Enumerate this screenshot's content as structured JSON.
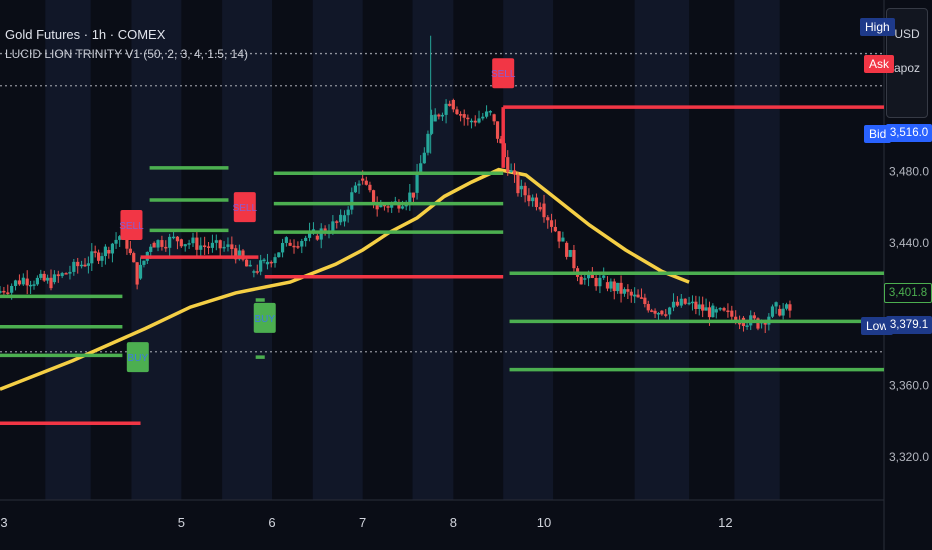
{
  "header": {
    "symbol_title": "Gold Futures · 1h · COMEX",
    "indicator_title": "LUCID LION TRINITY V1 (50, 2, 3, 4, 1.5, 14)"
  },
  "currency_box": {
    "currency": "USD",
    "label": "apoz"
  },
  "price_tags": {
    "high_label": "High",
    "ask_label": "Ask",
    "bid_label": "Bid",
    "bid_value": "3,516.0",
    "last_value": "3,401.8",
    "low_label": "Low",
    "low_value": "3,379.1"
  },
  "colors": {
    "background": "#0a0d16",
    "session_shade": "#111728",
    "up_candle": "#26a69a",
    "down_candle": "#ef5350",
    "ema_line": "#f5cf45",
    "support_line": "#4caf50",
    "resistance_line": "#f23645",
    "sell_marker": "#f23645",
    "buy_marker": "#4caf50",
    "high_tag": "#1e3a8a",
    "bid_tag": "#2962ff",
    "low_tag": "#1e3a8a"
  },
  "chart_data": {
    "type": "candlestick",
    "title": "Gold Futures · 1h · COMEX",
    "ylim": [
      3296,
      3576
    ],
    "y_ticks": [
      "3,320.0",
      "3,360.0",
      "3,440.0",
      "3,480.0"
    ],
    "x_ticks": [
      "3",
      "5",
      "6",
      "7",
      "8",
      "10",
      "12"
    ],
    "x_tick_positions_index": [
      0,
      2,
      3,
      4,
      5,
      6,
      8
    ],
    "x_domain_days": [
      3,
      12.75
    ],
    "dotted_levels": [
      3546,
      3528,
      3379
    ],
    "ema_points": [
      [
        3.0,
        3358
      ],
      [
        3.8,
        3374
      ],
      [
        4.6,
        3392
      ],
      [
        5.1,
        3404
      ],
      [
        5.6,
        3412
      ],
      [
        6.2,
        3418
      ],
      [
        6.7,
        3428
      ],
      [
        7.0,
        3436
      ],
      [
        7.3,
        3446
      ],
      [
        7.6,
        3454
      ],
      [
        7.9,
        3466
      ],
      [
        8.2,
        3474
      ],
      [
        8.5,
        3481
      ],
      [
        8.8,
        3478
      ],
      [
        9.1,
        3466
      ],
      [
        9.5,
        3450
      ],
      [
        9.9,
        3436
      ],
      [
        10.3,
        3424
      ],
      [
        10.6,
        3418
      ]
    ],
    "support_lines": [
      {
        "x0": 3.0,
        "x1": 4.35,
        "y": 3410
      },
      {
        "x0": 3.0,
        "x1": 4.35,
        "y": 3393
      },
      {
        "x0": 3.0,
        "x1": 4.35,
        "y": 3377
      },
      {
        "x0": 4.65,
        "x1": 5.52,
        "y": 3482
      },
      {
        "x0": 4.65,
        "x1": 5.52,
        "y": 3464
      },
      {
        "x0": 4.65,
        "x1": 5.52,
        "y": 3447
      },
      {
        "x0": 6.02,
        "x1": 8.55,
        "y": 3479
      },
      {
        "x0": 6.02,
        "x1": 8.55,
        "y": 3462
      },
      {
        "x0": 6.02,
        "x1": 8.55,
        "y": 3446
      },
      {
        "x0": 8.62,
        "x1": 12.75,
        "y": 3423
      },
      {
        "x0": 8.62,
        "x1": 12.75,
        "y": 3396
      },
      {
        "x0": 8.62,
        "x1": 12.75,
        "y": 3369
      },
      {
        "x0": 5.82,
        "x1": 5.92,
        "y": 3408
      },
      {
        "x0": 5.82,
        "x1": 5.92,
        "y": 3393
      },
      {
        "x0": 5.82,
        "x1": 5.92,
        "y": 3376
      }
    ],
    "resistance_lines": [
      {
        "x0": 3.0,
        "x1": 4.55,
        "y": 3339
      },
      {
        "x0": 4.55,
        "x1": 5.85,
        "y": 3432
      },
      {
        "x0": 5.92,
        "x1": 8.55,
        "y": 3421
      },
      {
        "x0": 8.55,
        "x1": 12.75,
        "y": 3516
      }
    ],
    "signals": [
      {
        "type": "sell",
        "label": "SELL",
        "x": 4.45,
        "y": 3450
      },
      {
        "type": "buy",
        "label": "BUY",
        "x": 4.52,
        "y": 3376
      },
      {
        "type": "sell",
        "label": "SELL",
        "x": 5.7,
        "y": 3460
      },
      {
        "type": "buy",
        "label": "BUY",
        "x": 5.92,
        "y": 3398
      },
      {
        "type": "sell",
        "label": "SELL",
        "x": 8.55,
        "y": 3535
      }
    ],
    "candles_seed": [
      [
        3.0,
        3412
      ],
      [
        3.3,
        3420
      ],
      [
        3.6,
        3418
      ],
      [
        3.9,
        3427
      ],
      [
        4.2,
        3436
      ],
      [
        4.4,
        3446
      ],
      [
        4.55,
        3420
      ],
      [
        4.7,
        3440
      ],
      [
        5.0,
        3442
      ],
      [
        5.3,
        3438
      ],
      [
        5.6,
        3437
      ],
      [
        5.8,
        3424
      ],
      [
        5.95,
        3428
      ],
      [
        6.2,
        3440
      ],
      [
        6.5,
        3444
      ],
      [
        6.8,
        3452
      ],
      [
        7.0,
        3476
      ],
      [
        7.2,
        3460
      ],
      [
        7.4,
        3462
      ],
      [
        7.6,
        3468
      ],
      [
        7.8,
        3508
      ],
      [
        8.0,
        3520
      ],
      [
        8.2,
        3508
      ],
      [
        8.45,
        3512
      ],
      [
        8.6,
        3488
      ],
      [
        8.75,
        3470
      ],
      [
        9.0,
        3462
      ],
      [
        9.25,
        3440
      ],
      [
        9.45,
        3420
      ],
      [
        9.7,
        3418
      ],
      [
        10.0,
        3410
      ],
      [
        10.3,
        3402
      ],
      [
        10.6,
        3406
      ],
      [
        10.9,
        3401
      ],
      [
        11.2,
        3398
      ],
      [
        11.4,
        3395
      ],
      [
        11.6,
        3403
      ],
      [
        11.75,
        3402
      ]
    ]
  }
}
